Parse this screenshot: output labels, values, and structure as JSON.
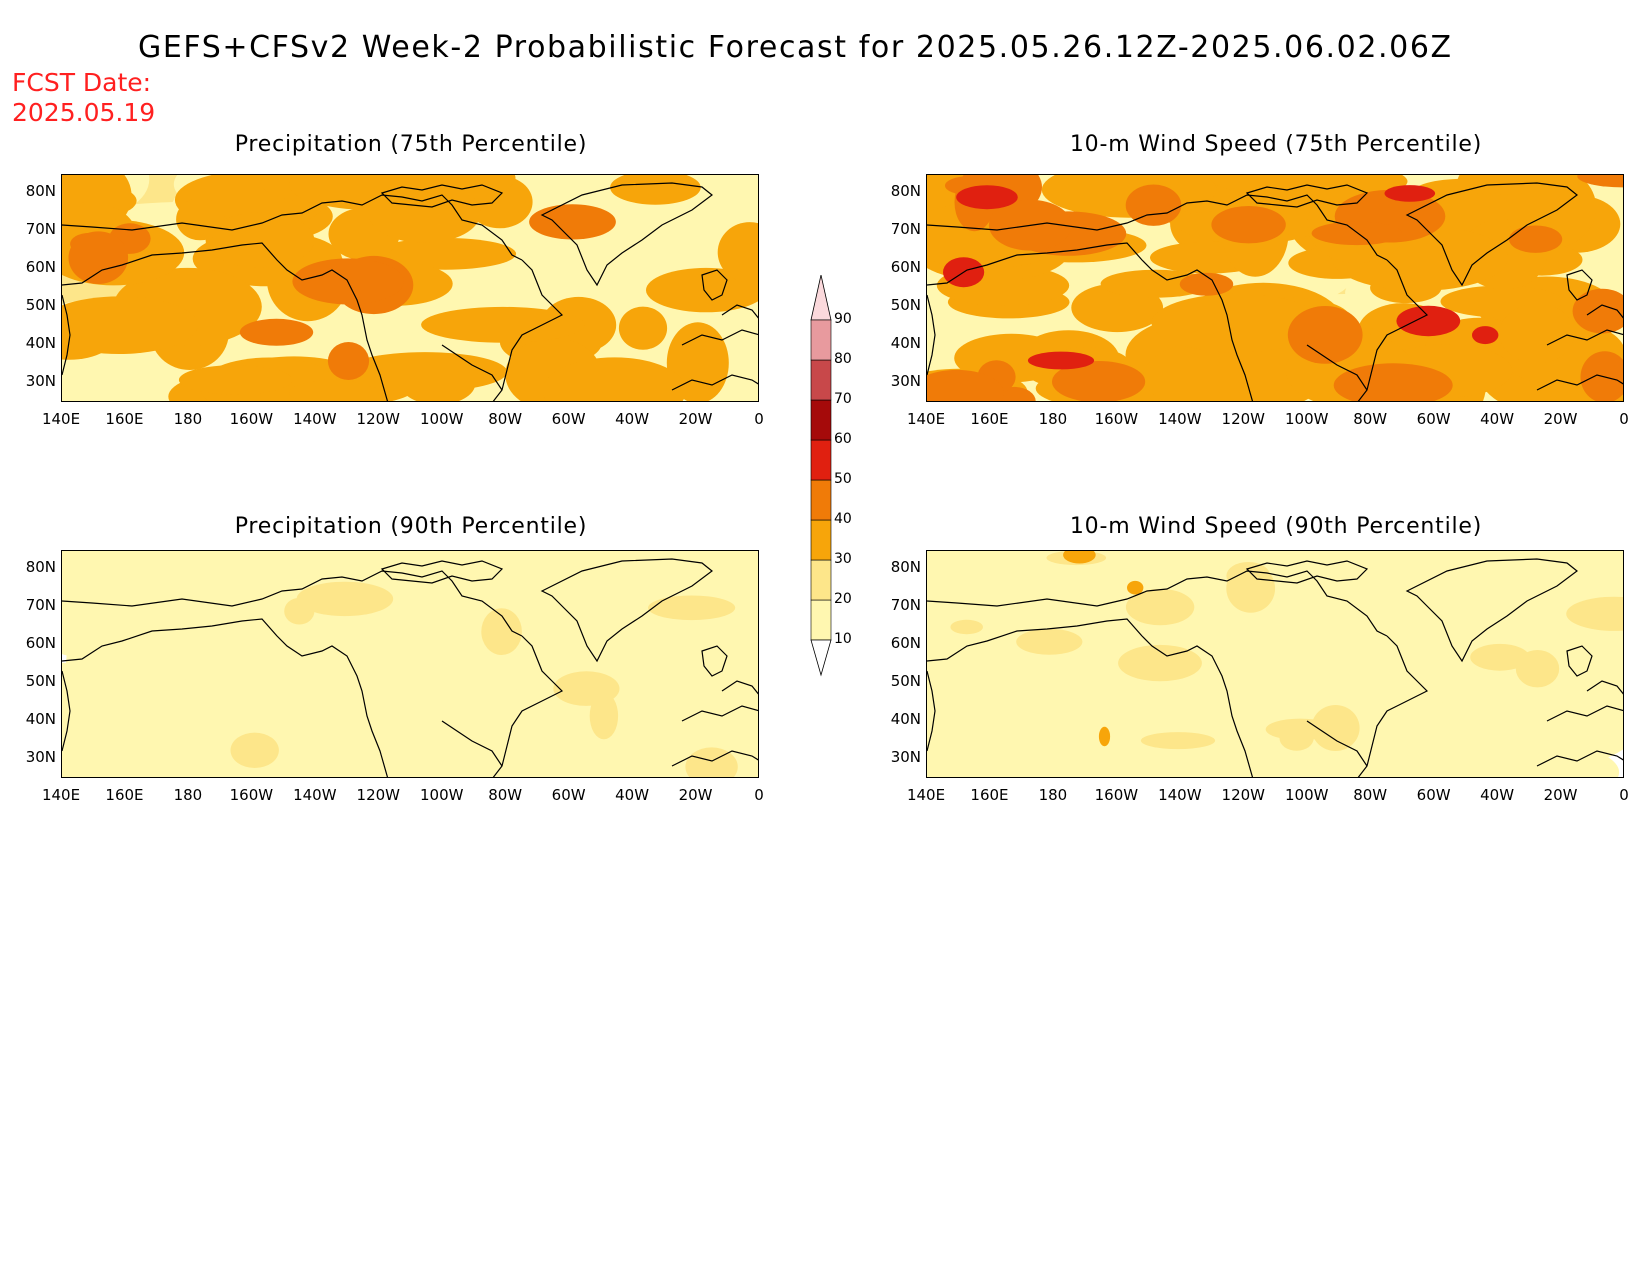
{
  "title": "GEFS+CFSv2 Week-2 Probabilistic Forecast for 2025.05.26.12Z-2025.06.02.06Z",
  "forecast_date": {
    "label": "FCST Date:",
    "value": "2025.05.19"
  },
  "panels": [
    {
      "title": "Precipitation (75th Percentile)",
      "style": "precip75"
    },
    {
      "title": "10-m Wind Speed (75th Percentile)",
      "style": "wind75"
    },
    {
      "title": "Precipitation (90th Percentile)",
      "style": "precip90"
    },
    {
      "title": "10-m Wind Speed (90th Percentile)",
      "style": "wind90"
    }
  ],
  "lat_labels": [
    "80N",
    "70N",
    "60N",
    "50N",
    "40N",
    "30N"
  ],
  "lon_labels": [
    "140E",
    "160E",
    "180",
    "160W",
    "140W",
    "120W",
    "100W",
    "80W",
    "60W",
    "40W",
    "20W",
    "0"
  ],
  "colorbar": {
    "labels": [
      "10",
      "20",
      "30",
      "40",
      "50",
      "60",
      "70",
      "80",
      "90"
    ],
    "colors": [
      "#fff7b0",
      "#fde68a",
      "#f7a50a",
      "#f07b08",
      "#e02010",
      "#a50a0a",
      "#c8484a",
      "#e89a9e",
      "#fbd9dc"
    ]
  },
  "colors": {
    "title_text": "#000000",
    "fcst_text": "#ff2020",
    "coastline": "#000000"
  }
}
